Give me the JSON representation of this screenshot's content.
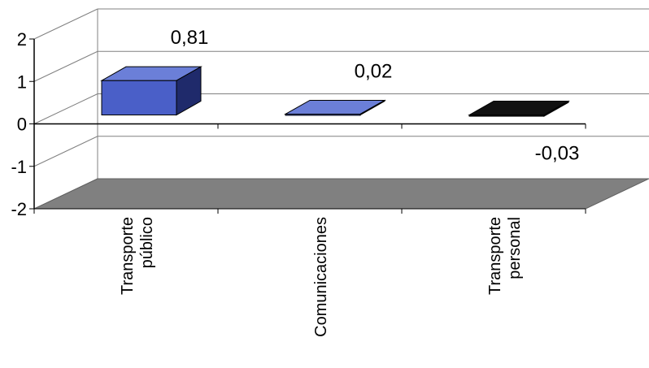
{
  "chart_data": {
    "type": "bar",
    "categories": [
      [
        "Transporte",
        "público"
      ],
      [
        "Comunicaciones"
      ],
      [
        "Transporte",
        "personal"
      ]
    ],
    "values": [
      0.81,
      0.02,
      -0.03
    ],
    "data_labels": [
      "0,81",
      "0,02",
      "-0,03"
    ],
    "y_ticks": [
      "2",
      "1",
      "0",
      "-1",
      "-2"
    ],
    "ylim": [
      -2,
      2
    ],
    "grid": true,
    "three_d": true,
    "colors": {
      "bar_fill": "#4a5fc8",
      "bar_top": "#6b7fd8",
      "bar_side": "#1f2a6b",
      "bar_negative": "#111111",
      "floor": "#808080",
      "wall": "#ffffff",
      "axis": "#808080"
    }
  }
}
